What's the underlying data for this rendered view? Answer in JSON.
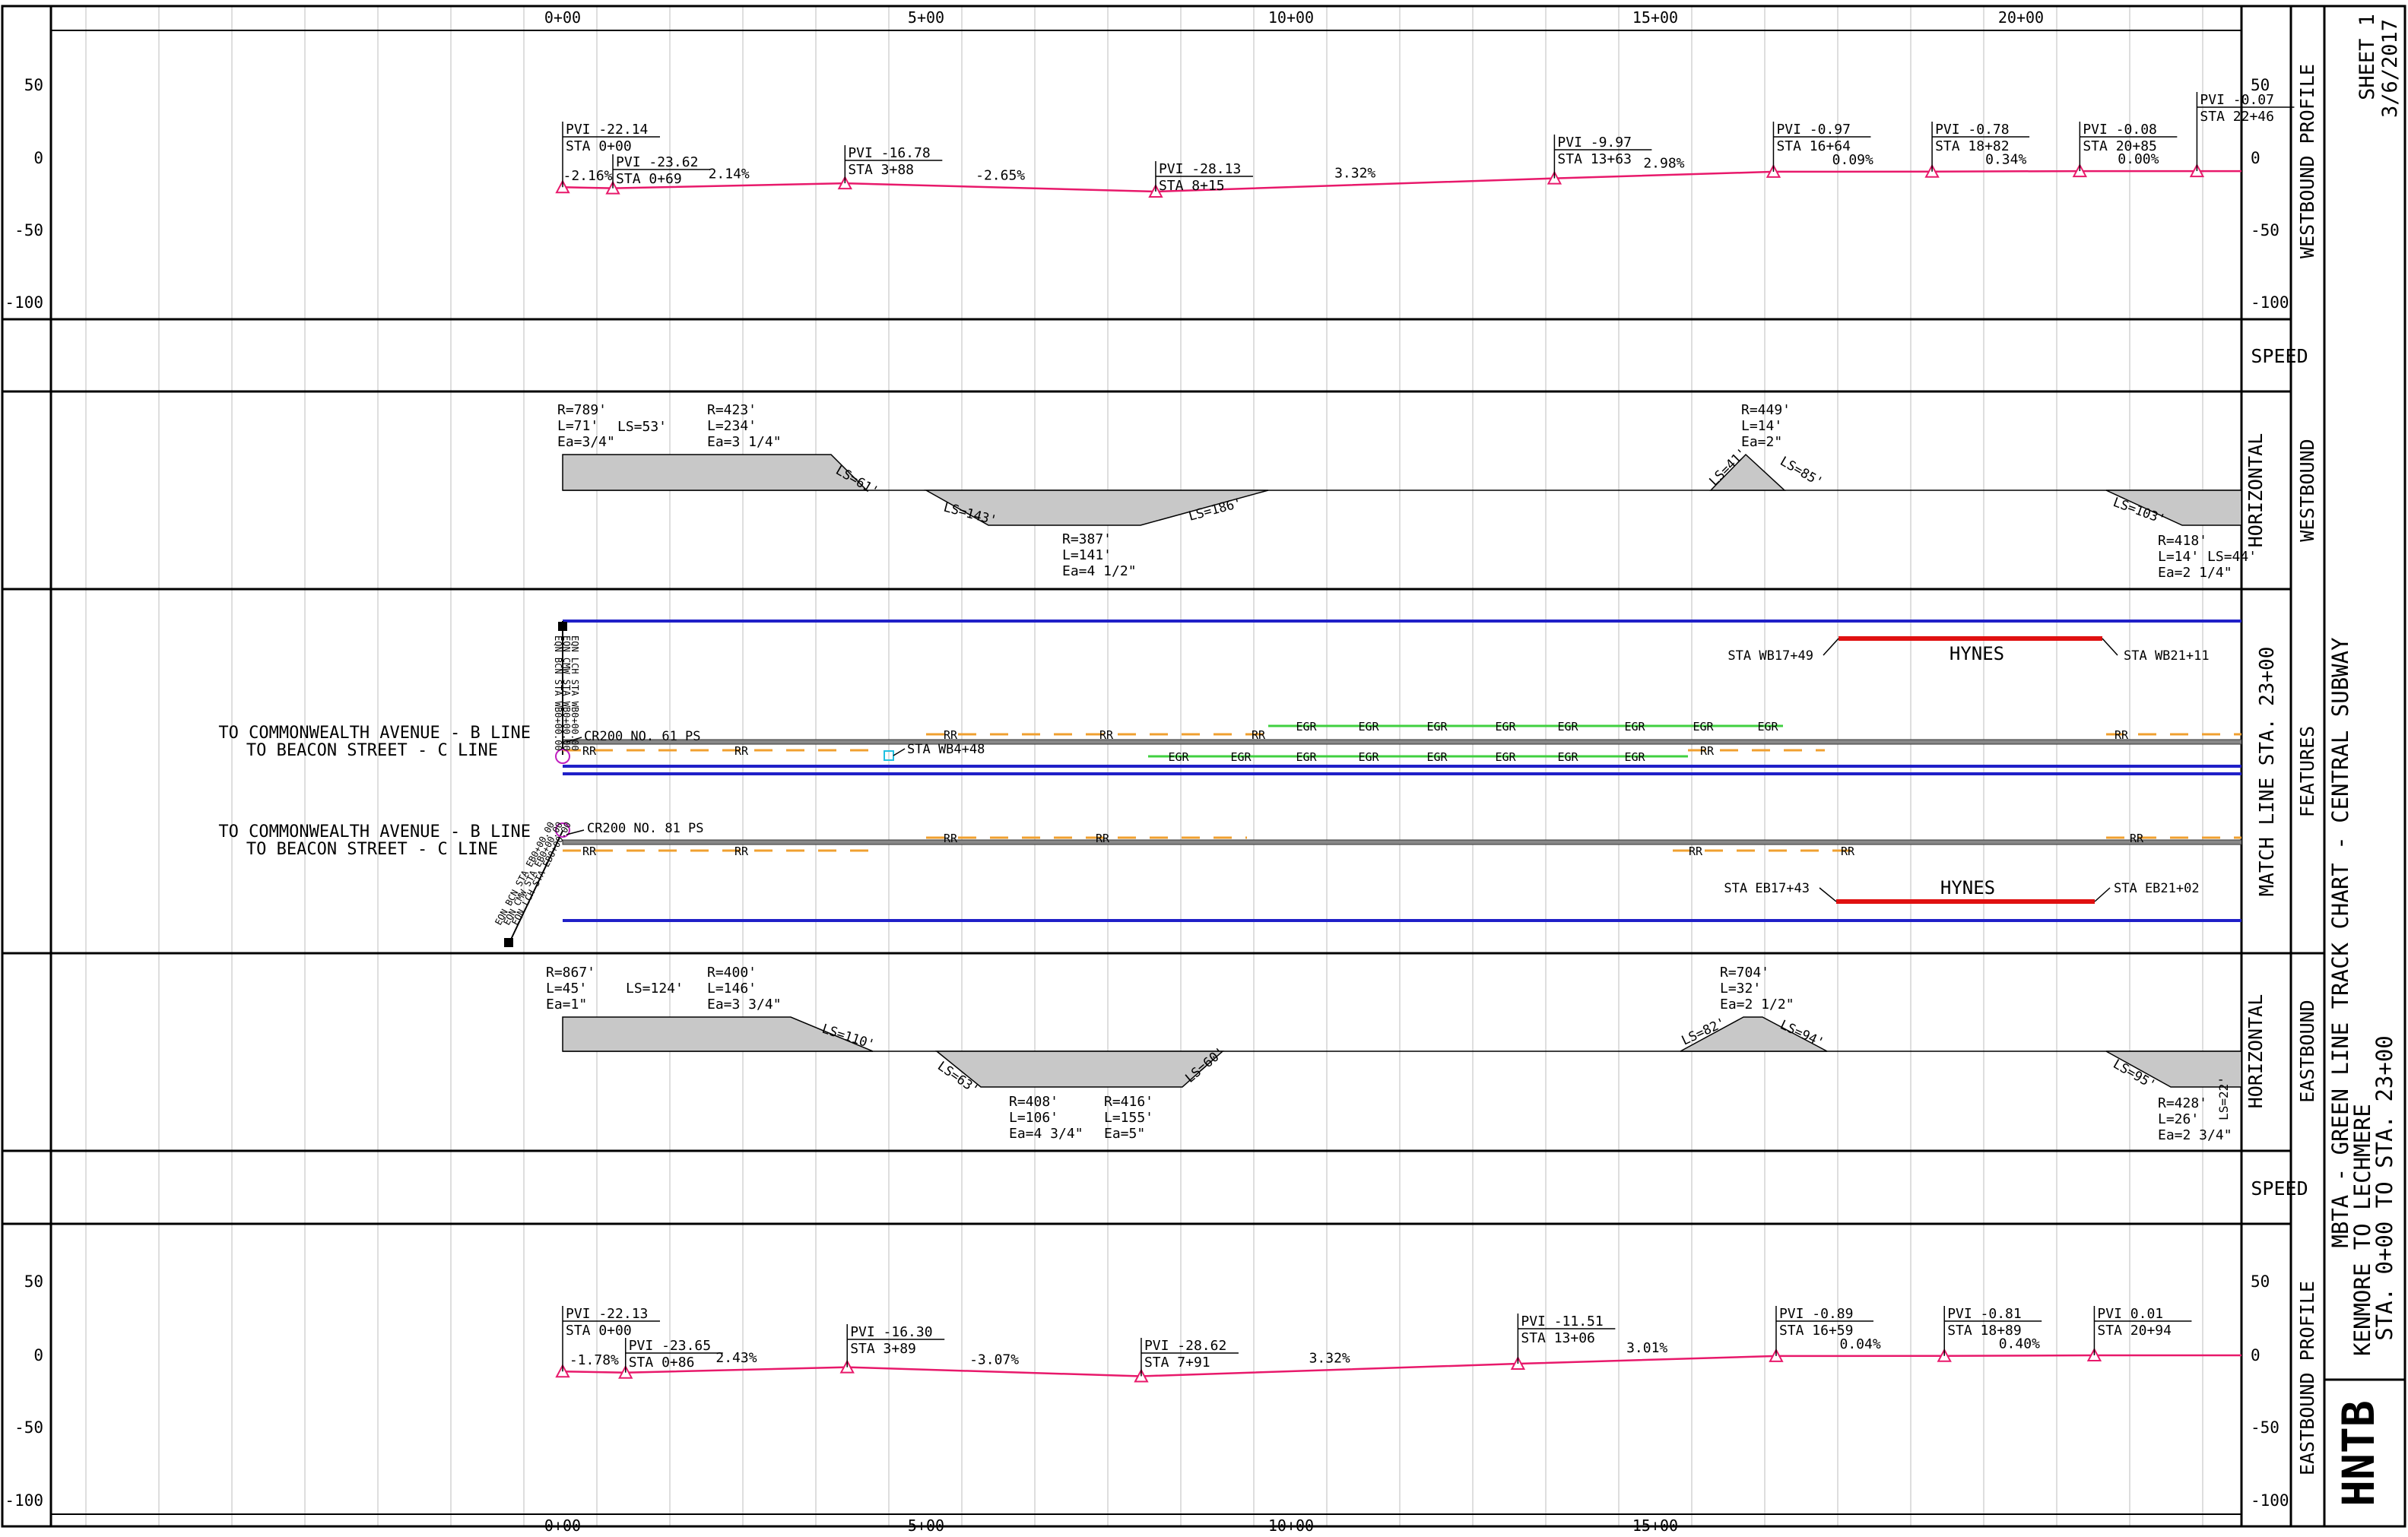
{
  "stations": [
    "0+00",
    "5+00",
    "10+00",
    "15+00",
    "20+00"
  ],
  "bottom_stations": [
    "0+00",
    "5+00",
    "10+00",
    "15+00"
  ],
  "colors": {
    "profile": "#e8196b",
    "track": "#2020c8",
    "station_box": "#e01010",
    "rr": "#f0a030",
    "egr": "#40d040",
    "curve_fill": "#c8c8c8",
    "pink_circle": "#c020c0",
    "cyan": "#20c0e0"
  },
  "wb_profile": {
    "label": "WESTBOUND PROFILE",
    "yticks": [
      "50",
      "0",
      "-50",
      "-100"
    ],
    "pvis": [
      {
        "sta": 0,
        "elev": -22.14,
        "l1": "PVI -22.14",
        "l2": "STA 0+00"
      },
      {
        "sta": 69,
        "elev": -23.62,
        "l1": "PVI -23.62",
        "l2": "STA 0+69"
      },
      {
        "sta": 388,
        "elev": -16.78,
        "l1": "PVI -16.78",
        "l2": "STA 3+88"
      },
      {
        "sta": 815,
        "elev": -28.13,
        "l1": "PVI -28.13",
        "l2": "STA 8+15"
      },
      {
        "sta": 1363,
        "elev": -9.97,
        "l1": "PVI -9.97",
        "l2": "STA 13+63"
      },
      {
        "sta": 1664,
        "elev": -0.97,
        "l1": "PVI -0.97",
        "l2": "STA 16+64"
      },
      {
        "sta": 1882,
        "elev": -0.78,
        "l1": "PVI -0.78",
        "l2": "STA 18+82"
      },
      {
        "sta": 2085,
        "elev": -0.08,
        "l1": "PVI -0.08",
        "l2": "STA 20+85"
      },
      {
        "sta": 2246,
        "elev": -0.07,
        "l1": "PVI -0.07",
        "l2": "STA 22+46"
      }
    ],
    "grades": [
      "-2.16%",
      "2.14%",
      "-2.65%",
      "3.32%",
      "2.98%",
      "0.09%",
      "0.34%",
      "0.00%"
    ]
  },
  "eb_profile": {
    "label": "EASTBOUND PROFILE",
    "yticks": [
      "50",
      "0",
      "-50",
      "-100"
    ],
    "pvis": [
      {
        "sta": 0,
        "elev": -22.13,
        "l1": "PVI -22.13",
        "l2": "STA 0+00"
      },
      {
        "sta": 86,
        "elev": -23.65,
        "l1": "PVI -23.65",
        "l2": "STA 0+86"
      },
      {
        "sta": 389,
        "elev": -16.3,
        "l1": "PVI -16.30",
        "l2": "STA 3+89"
      },
      {
        "sta": 791,
        "elev": -28.62,
        "l1": "PVI -28.62",
        "l2": "STA 7+91"
      },
      {
        "sta": 1306,
        "elev": -11.51,
        "l1": "PVI -11.51",
        "l2": "STA 13+06"
      },
      {
        "sta": 1659,
        "elev": -0.89,
        "l1": "PVI -0.89",
        "l2": "STA 16+59"
      },
      {
        "sta": 1889,
        "elev": -0.81,
        "l1": "PVI -0.81",
        "l2": "STA 18+89"
      },
      {
        "sta": 2094,
        "elev": 0.01,
        "l1": "PVI 0.01",
        "l2": "STA 20+94"
      }
    ],
    "grades": [
      "-1.78%",
      "2.43%",
      "-3.07%",
      "3.32%",
      "3.01%",
      "0.04%",
      "0.40%"
    ]
  },
  "speed_label": "SPEED",
  "wb_horizontal": {
    "label1": "WESTBOUND",
    "label2": "HORIZONTAL",
    "curve_texts": [
      [
        "R=789'",
        "L=71'",
        "Ea=3/4\""
      ],
      [
        "LS=53'"
      ],
      [
        "R=423'",
        "L=234'",
        "Ea=3 1/4\""
      ],
      [
        "LS=61'"
      ],
      [
        "LS=143'"
      ],
      [
        "R=387'",
        "L=141'",
        "Ea=4 1/2\""
      ],
      [
        "LS=186'"
      ],
      [
        "R=449'",
        "L=14'",
        "Ea=2\""
      ],
      [
        "LS=41'"
      ],
      [
        "LS=85'"
      ],
      [
        "LS=103'"
      ],
      [
        "R=418'",
        "L=14' LS=44'",
        "Ea=2 1/4\""
      ]
    ]
  },
  "eb_horizontal": {
    "label1": "EASTBOUND",
    "label2": "HORIZONTAL",
    "curve_texts": [
      [
        "R=867'",
        "L=45'",
        "Ea=1\""
      ],
      [
        "LS=124'"
      ],
      [
        "R=400'",
        "L=146'",
        "Ea=3 3/4\""
      ],
      [
        "LS=110'"
      ],
      [
        "LS=63'"
      ],
      [
        "R=408'",
        "L=106'",
        "Ea=4 3/4\""
      ],
      [
        "R=416'",
        "L=155'",
        "Ea=5\""
      ],
      [
        "LS=60'"
      ],
      [
        "R=704'",
        "L=32'",
        "Ea=2 1/2\""
      ],
      [
        "LS=82'"
      ],
      [
        "LS=94'"
      ],
      [
        "LS=95'"
      ],
      [
        "R=428'",
        "L=26'",
        "Ea=2 3/4\""
      ],
      [
        "LS=22'"
      ]
    ]
  },
  "features": {
    "label": "FEATURES",
    "match_line": "MATCH LINE STA. 23+00",
    "branch_1": "TO COMMONWEALTH AVENUE - B LINE",
    "branch_2": "TO BEACON STREET - C LINE",
    "cr_wb": "CR200 NO. 61 PS",
    "cr_eb": "CR200 NO. 81 PS",
    "sta_wb448": "STA WB4+48",
    "wb_station_start": "STA WB17+49",
    "wb_station_end": "STA WB21+11",
    "eb_station_start": "STA EB17+43",
    "eb_station_end": "STA EB21+02",
    "station_name": "HYNES",
    "rr": "RR",
    "egr": "EGR",
    "wb_equation": [
      "EQN BCN STA WB0+00.00",
      "EQN CMW STA WB0+00.00",
      "EQN LCH STA WB0+00.00"
    ],
    "eb_equation": [
      "EQN BCN STA EB0+00.00",
      "EQN CMW STA EB0+00.00",
      "EQN LCH STA EB0+00.00"
    ]
  },
  "title_block": {
    "sheet": "SHEET 1",
    "date": "3/6/2017",
    "line1": "MBTA - GREEN LINE TRACK CHART - CENTRAL SUBWAY",
    "line2": "KENMORE TO LECHMERE",
    "line3": "STA. 0+00 TO STA. 23+00",
    "logo": "HNTB"
  }
}
